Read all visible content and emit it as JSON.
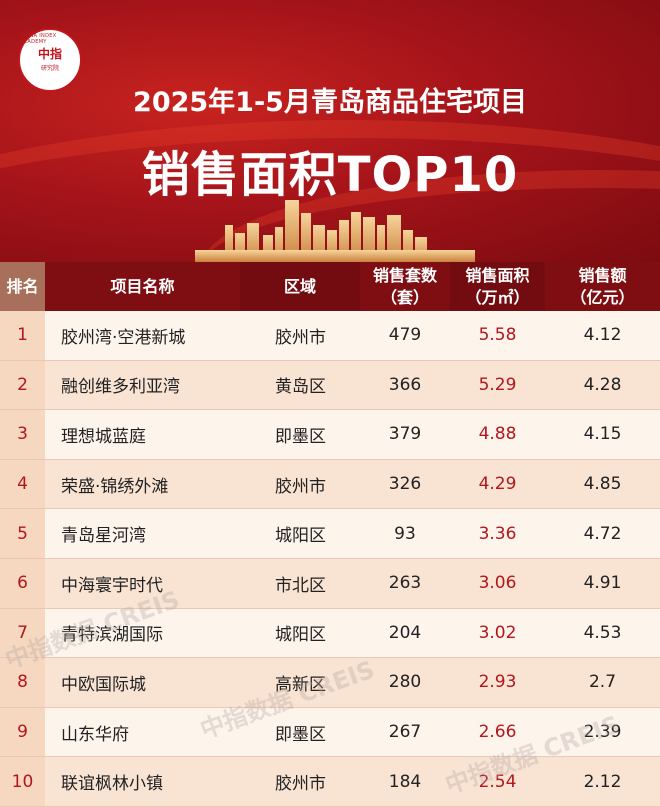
{
  "logo": {
    "center": "中指",
    "ring": "CHINA INDEX ACADEMY",
    "sub": "研究院"
  },
  "title_line1": "2025年1-5月青岛商品住宅项目",
  "title_line2": "销售面积TOP10",
  "colors": {
    "header_red": "#7e0e12",
    "rank_header": "#a8705a",
    "accent_red": "#b3161b"
  },
  "columns": [
    "排名",
    "项目名称",
    "区域",
    "销售套数\n（套）",
    "销售面积\n（万㎡）",
    "销售额\n（亿元）"
  ],
  "rows": [
    {
      "rank": "1",
      "name": "胶州湾·空港新城",
      "district": "胶州市",
      "units": "479",
      "area": "5.58",
      "sales": "4.12"
    },
    {
      "rank": "2",
      "name": "融创维多利亚湾",
      "district": "黄岛区",
      "units": "366",
      "area": "5.29",
      "sales": "4.28"
    },
    {
      "rank": "3",
      "name": "理想城蓝庭",
      "district": "即墨区",
      "units": "379",
      "area": "4.88",
      "sales": "4.15"
    },
    {
      "rank": "4",
      "name": "荣盛·锦绣外滩",
      "district": "胶州市",
      "units": "326",
      "area": "4.29",
      "sales": "4.85"
    },
    {
      "rank": "5",
      "name": "青岛星河湾",
      "district": "城阳区",
      "units": "93",
      "area": "3.36",
      "sales": "4.72"
    },
    {
      "rank": "6",
      "name": "中海寰宇时代",
      "district": "市北区",
      "units": "263",
      "area": "3.06",
      "sales": "4.91"
    },
    {
      "rank": "7",
      "name": "青特滨湖国际",
      "district": "城阳区",
      "units": "204",
      "area": "3.02",
      "sales": "4.53"
    },
    {
      "rank": "8",
      "name": "中欧国际城",
      "district": "高新区",
      "units": "280",
      "area": "2.93",
      "sales": "2.7"
    },
    {
      "rank": "9",
      "name": "山东华府",
      "district": "即墨区",
      "units": "267",
      "area": "2.66",
      "sales": "2.39"
    },
    {
      "rank": "10",
      "name": "联谊枫林小镇",
      "district": "胶州市",
      "units": "184",
      "area": "2.54",
      "sales": "2.12"
    }
  ],
  "watermark": "中指数据 CREIS"
}
